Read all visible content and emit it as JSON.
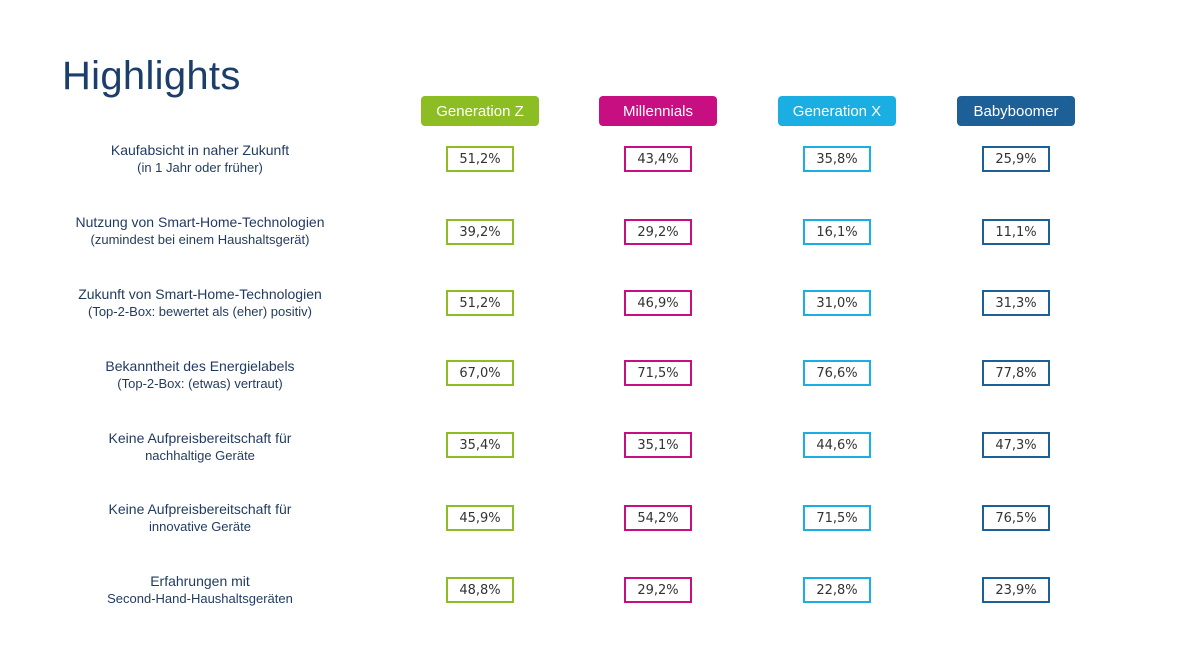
{
  "chart_data": {
    "type": "table",
    "title": "Highlights",
    "series": [
      {
        "name": "Generation Z",
        "color": "#8cbd23",
        "values": [
          "51,2%",
          "39,2%",
          "51,2%",
          "67,0%",
          "35,4%",
          "45,9%",
          "48,8%"
        ]
      },
      {
        "name": "Millennials",
        "color": "#c80f82",
        "values": [
          "43,4%",
          "29,2%",
          "46,9%",
          "71,5%",
          "35,1%",
          "54,2%",
          "29,2%"
        ]
      },
      {
        "name": "Generation X",
        "color": "#1aaee3",
        "values": [
          "35,8%",
          "16,1%",
          "31,0%",
          "76,6%",
          "44,6%",
          "71,5%",
          "22,8%"
        ]
      },
      {
        "name": "Babyboomer",
        "color": "#1d5f97",
        "values": [
          "25,9%",
          "11,1%",
          "31,3%",
          "77,8%",
          "47,3%",
          "76,5%",
          "23,9%"
        ]
      }
    ],
    "rows": [
      {
        "main": "Kaufabsicht in naher Zukunft",
        "sub": "(in 1 Jahr oder früher)"
      },
      {
        "main": "Nutzung von Smart-Home-Technologien",
        "sub": "(zumindest bei einem Haushaltsgerät)"
      },
      {
        "main": "Zukunft von Smart-Home-Technologien",
        "sub": "(Top-2-Box: bewertet als (eher) positiv)"
      },
      {
        "main": "Bekanntheit des Energielabels",
        "sub": "(Top-2-Box: (etwas) vertraut)"
      },
      {
        "main": "Keine Aufpreisbereitschaft für",
        "sub": "nachhaltige Geräte"
      },
      {
        "main": "Keine Aufpreisbereitschaft für",
        "sub": "innovative Geräte"
      },
      {
        "main": "Erfahrungen mit",
        "sub": "Second-Hand-Haushaltsgeräten"
      }
    ]
  }
}
